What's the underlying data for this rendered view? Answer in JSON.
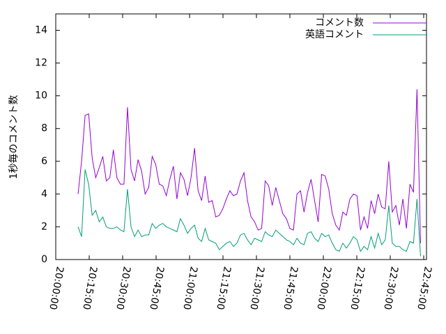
{
  "chart_data": {
    "type": "line",
    "y_label": "1秒毎のコメント数",
    "legend": "top right",
    "xlim": [
      "20:00:00",
      "22:46:15"
    ],
    "xticks": [
      "20:00:00",
      "20:15:00",
      "20:30:00",
      "20:45:00",
      "21:00:00",
      "21:15:00",
      "21:30:00",
      "21:45:00",
      "22:00:00",
      "22:15:00",
      "22:30:00",
      "22:45:00"
    ],
    "ylim": [
      0,
      15
    ],
    "yticks": [
      0,
      2,
      4,
      6,
      8,
      10,
      12,
      14
    ],
    "x": [
      "20:10:00",
      "20:11:35",
      "20:13:10",
      "20:14:45",
      "20:16:20",
      "20:17:55",
      "20:19:30",
      "20:21:05",
      "20:22:40",
      "20:24:15",
      "20:25:50",
      "20:27:25",
      "20:29:00",
      "20:30:35",
      "20:32:10",
      "20:33:45",
      "20:35:20",
      "20:36:55",
      "20:38:30",
      "20:40:05",
      "20:41:40",
      "20:43:15",
      "20:44:50",
      "20:46:25",
      "20:48:00",
      "20:49:35",
      "20:51:10",
      "20:52:45",
      "20:54:20",
      "20:55:55",
      "20:57:30",
      "20:59:05",
      "21:00:40",
      "21:02:15",
      "21:03:50",
      "21:05:25",
      "21:07:00",
      "21:08:35",
      "21:10:10",
      "21:11:45",
      "21:13:20",
      "21:14:55",
      "21:16:30",
      "21:18:05",
      "21:19:40",
      "21:21:15",
      "21:22:50",
      "21:24:25",
      "21:26:00",
      "21:27:35",
      "21:29:10",
      "21:30:45",
      "21:32:20",
      "21:33:55",
      "21:35:30",
      "21:37:05",
      "21:38:40",
      "21:40:15",
      "21:41:50",
      "21:43:25",
      "21:45:00",
      "21:46:35",
      "21:48:10",
      "21:49:45",
      "21:51:20",
      "21:52:55",
      "21:54:30",
      "21:56:05",
      "21:57:40",
      "21:59:15",
      "22:00:50",
      "22:02:25",
      "22:04:00",
      "22:05:35",
      "22:07:10",
      "22:08:45",
      "22:10:20",
      "22:11:55",
      "22:13:30",
      "22:15:05",
      "22:16:40",
      "22:18:15",
      "22:19:50",
      "22:21:25",
      "22:23:00",
      "22:24:35",
      "22:26:10",
      "22:27:45",
      "22:29:20",
      "22:30:55",
      "22:32:30",
      "22:34:05",
      "22:35:40",
      "22:37:15",
      "22:38:50",
      "22:40:25",
      "22:42:00",
      "22:43:35"
    ],
    "series": [
      {
        "name": "コメント数",
        "color": "#9400d3",
        "values": [
          4.0,
          6.0,
          8.8,
          8.9,
          6.2,
          5.0,
          5.6,
          6.3,
          4.8,
          5.0,
          6.7,
          5.0,
          4.6,
          4.6,
          9.3,
          5.5,
          4.8,
          6.1,
          5.4,
          4.0,
          4.4,
          6.3,
          5.8,
          4.6,
          4.5,
          3.9,
          4.9,
          5.7,
          3.7,
          5.3,
          4.9,
          3.9,
          5.0,
          6.8,
          4.2,
          3.6,
          5.1,
          3.5,
          3.6,
          2.6,
          2.7,
          3.1,
          3.7,
          4.2,
          3.9,
          4.0,
          4.8,
          5.3,
          3.6,
          2.6,
          2.3,
          1.8,
          1.9,
          4.8,
          4.5,
          3.3,
          4.4,
          3.6,
          2.8,
          2.5,
          1.9,
          1.8,
          4.0,
          4.2,
          2.9,
          4.1,
          4.9,
          3.6,
          2.3,
          5.2,
          5.1,
          4.3,
          2.8,
          2.1,
          1.8,
          2.9,
          2.7,
          3.7,
          4.0,
          3.9,
          1.8,
          2.6,
          1.9,
          3.6,
          2.8,
          4.0,
          3.2,
          3.1,
          6.0,
          2.9,
          3.3,
          2.1,
          3.7,
          1.9,
          4.6,
          4.1,
          10.4,
          1.0
        ]
      },
      {
        "name": "英語コメント",
        "color": "#009e73",
        "values": [
          2.0,
          1.4,
          5.5,
          4.6,
          2.7,
          3.0,
          2.3,
          2.6,
          2.0,
          1.9,
          1.9,
          2.0,
          1.8,
          1.7,
          4.3,
          2.0,
          1.4,
          1.8,
          1.4,
          1.5,
          1.5,
          2.2,
          1.9,
          2.1,
          2.2,
          2.0,
          1.9,
          1.8,
          1.7,
          2.5,
          2.1,
          1.6,
          1.9,
          2.1,
          1.3,
          1.1,
          1.9,
          1.2,
          1.1,
          1.0,
          0.6,
          0.8,
          1.0,
          1.1,
          0.8,
          1.0,
          1.5,
          1.6,
          1.2,
          0.9,
          1.3,
          1.2,
          1.1,
          1.7,
          1.5,
          1.4,
          1.8,
          1.6,
          1.4,
          1.2,
          1.1,
          0.9,
          1.3,
          1.0,
          0.9,
          1.6,
          1.7,
          1.3,
          1.1,
          1.6,
          1.4,
          1.5,
          1.0,
          0.6,
          0.5,
          1.0,
          0.7,
          1.0,
          1.4,
          1.2,
          0.5,
          0.8,
          0.6,
          1.4,
          0.7,
          1.6,
          0.9,
          1.2,
          3.3,
          1.0,
          0.8,
          0.8,
          0.6,
          0.5,
          1.1,
          1.0,
          3.7,
          0.2
        ]
      }
    ]
  }
}
